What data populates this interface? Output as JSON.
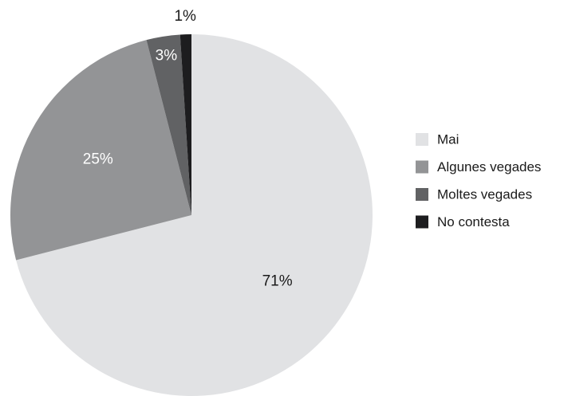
{
  "chart_data": {
    "type": "pie",
    "categories": [
      "Mai",
      "Algunes vegades",
      "Moltes vegades",
      "No contesta"
    ],
    "values": [
      71,
      25,
      3,
      1
    ],
    "value_labels": [
      "71%",
      "25%",
      "3%",
      "1%"
    ],
    "colors": [
      "#e1e2e4",
      "#939496",
      "#616264",
      "#1d1d1f"
    ],
    "legend": "right"
  }
}
